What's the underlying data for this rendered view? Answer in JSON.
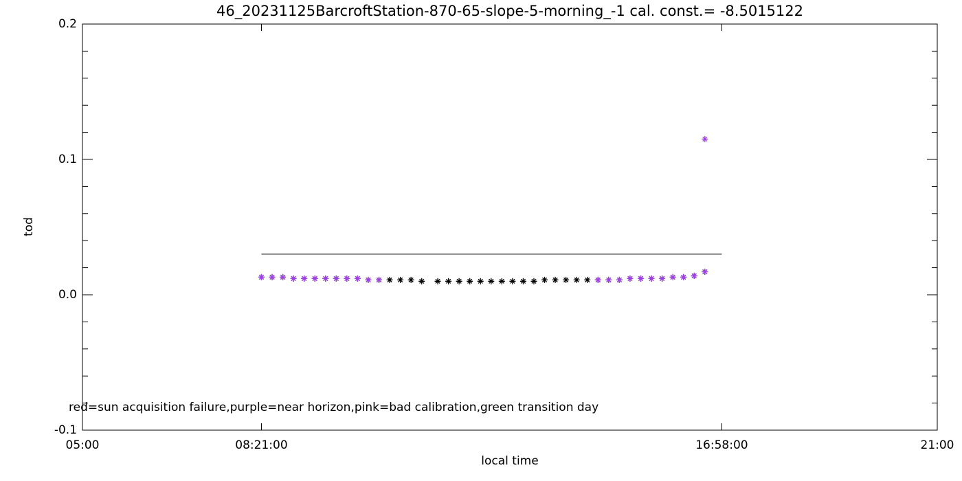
{
  "chart_data": {
    "type": "scatter",
    "title": "46_20231125BarcroftStation-870-65-slope-5-morning_-1 cal. const.= -8.5015122",
    "x_label": "local time",
    "y_label": "tod",
    "annotation": "red=sun acquisition failure,purple=near horizon,pink=bad calibration,green transition day",
    "xlim": [
      5,
      21
    ],
    "xticks": [
      {
        "value": 5,
        "label": "05:00"
      },
      {
        "value": 8.35,
        "label": "08:21:00"
      },
      {
        "value": 16.9667,
        "label": "16:58:00"
      },
      {
        "value": 21,
        "label": "21:00"
      }
    ],
    "ylim": [
      -0.1,
      0.2
    ],
    "yticks": [
      -0.1,
      {
        "value": 0,
        "label": "0.0"
      },
      0.1,
      0.2
    ],
    "yminorticks": [
      -0.08,
      -0.06,
      -0.04,
      -0.02,
      0.02,
      0.04,
      0.06,
      0.08,
      0.12,
      0.14,
      0.16,
      0.18
    ],
    "reference_line": {
      "x": [
        8.35,
        16.9667
      ],
      "y": 0.03,
      "color": "#000000"
    },
    "series": [
      {
        "color": "#000000",
        "x": [
          8.35,
          8.55,
          8.75,
          8.95,
          9.15,
          9.35,
          9.55,
          9.75,
          9.95,
          10.15,
          10.35,
          10.55,
          10.75,
          10.95,
          11.15,
          11.35,
          11.65,
          11.85,
          12.05,
          12.25,
          12.45,
          12.65,
          12.85,
          13.05,
          13.25,
          13.45,
          13.65,
          13.85,
          14.05,
          14.25,
          14.45,
          14.65,
          14.85,
          15.05,
          15.25,
          15.45,
          15.65,
          15.85,
          16.05,
          16.25,
          16.45,
          16.65
        ],
        "values": [
          0.013,
          0.013,
          0.013,
          0.012,
          0.012,
          0.012,
          0.012,
          0.012,
          0.012,
          0.012,
          0.011,
          0.011,
          0.011,
          0.011,
          0.011,
          0.01,
          0.01,
          0.01,
          0.01,
          0.01,
          0.01,
          0.01,
          0.01,
          0.01,
          0.01,
          0.01,
          0.011,
          0.011,
          0.011,
          0.011,
          0.011,
          0.011,
          0.011,
          0.011,
          0.012,
          0.012,
          0.012,
          0.012,
          0.013,
          0.013,
          0.014,
          0.017
        ]
      },
      {
        "color": "#a040e8",
        "x": [
          8.35,
          8.55,
          8.75,
          8.95,
          9.15,
          9.35,
          9.55,
          9.75,
          9.95,
          10.15,
          10.35,
          10.55,
          14.65,
          14.85,
          15.05,
          15.25,
          15.45,
          15.65,
          15.85,
          16.05,
          16.25,
          16.45,
          16.65,
          16.65
        ],
        "values": [
          0.013,
          0.013,
          0.013,
          0.012,
          0.012,
          0.012,
          0.012,
          0.012,
          0.012,
          0.012,
          0.011,
          0.011,
          0.011,
          0.011,
          0.011,
          0.012,
          0.012,
          0.012,
          0.012,
          0.013,
          0.013,
          0.014,
          0.017,
          0.115
        ]
      }
    ]
  }
}
